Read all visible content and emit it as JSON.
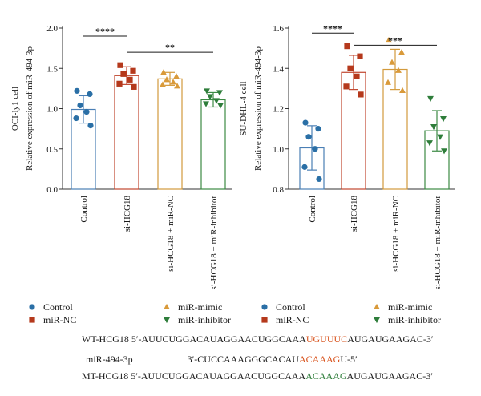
{
  "chart_data": [
    {
      "type": "bar",
      "ylabel_top": "OCI-ly1 cell",
      "ylabel_bottom": "Relative expression of miR-494-3p",
      "categories": [
        "Control",
        "si-HCG18",
        "si-HCG18 + miR-NC",
        "si-HCG18 + miR-inhibitor"
      ],
      "means": [
        0.99,
        1.41,
        1.37,
        1.11
      ],
      "sd": [
        0.17,
        0.11,
        0.08,
        0.09
      ],
      "points": [
        [
          1.22,
          1.18,
          1.04,
          0.96,
          0.88,
          0.79
        ],
        [
          1.54,
          1.47,
          1.43,
          1.36,
          1.31,
          1.27
        ],
        [
          1.45,
          1.4,
          1.36,
          1.33,
          1.3,
          1.28
        ],
        [
          1.22,
          1.2,
          1.15,
          1.1,
          1.06,
          1.04
        ]
      ],
      "ylim": [
        0.0,
        2.0
      ],
      "yticks": [
        0.0,
        0.5,
        1.0,
        1.5,
        2.0
      ],
      "tick_labels": [
        "0.0",
        "0.5",
        "1.0",
        "1.5",
        "2.0"
      ],
      "significance": [
        {
          "from": 0,
          "to": 1,
          "y": 1.9,
          "label": "****"
        },
        {
          "from": 1,
          "to": 3,
          "y": 1.7,
          "label": "**"
        }
      ]
    },
    {
      "type": "bar",
      "ylabel_top": "SU-DHL-4 cell",
      "ylabel_bottom": "Relative expression of miR-494-3p",
      "categories": [
        "Control",
        "si-HCG18",
        "si-HCG18 + miR-NC",
        "si-HCG18 + miR-inhibitor"
      ],
      "means": [
        1.005,
        1.38,
        1.395,
        1.09
      ],
      "sd": [
        0.11,
        0.085,
        0.1,
        0.1
      ],
      "points": [
        [
          1.13,
          1.1,
          1.06,
          1.0,
          0.91,
          0.85
        ],
        [
          1.51,
          1.46,
          1.4,
          1.36,
          1.31,
          1.27
        ],
        [
          1.54,
          1.48,
          1.43,
          1.39,
          1.33,
          1.29
        ],
        [
          1.25,
          1.15,
          1.11,
          1.06,
          1.03,
          0.99
        ]
      ],
      "ylim": [
        0.8,
        1.6
      ],
      "yticks": [
        0.8,
        1.0,
        1.2,
        1.4,
        1.6
      ],
      "tick_labels": [
        "0.8",
        "1.0",
        "1.2",
        "1.4",
        "1.6"
      ],
      "significance": [
        {
          "from": 0,
          "to": 1,
          "y": 1.575,
          "label": "****"
        },
        {
          "from": 1,
          "to": 3,
          "y": 1.515,
          "label": "***"
        }
      ]
    }
  ],
  "groups": [
    {
      "name": "Control",
      "color": "#2a6fa6",
      "marker": "circle"
    },
    {
      "name": "miR-NC",
      "color": "#b5391c",
      "marker": "square"
    },
    {
      "name": "miR-mimic",
      "color": "#d99a3a",
      "marker": "triangle-up"
    },
    {
      "name": "miR-inhibitor",
      "color": "#2e7d3a",
      "marker": "triangle-down"
    }
  ],
  "bar_edge_colors": [
    "#4a7fb5",
    "#c0462e",
    "#d39a3c",
    "#3c8a44"
  ],
  "sequences": [
    {
      "parts": [
        {
          "text": "WT-HCG18 5′-AUUCUGGACAUAGGAACUGGCAAA",
          "color": "#1a1a1a"
        },
        {
          "text": "UGUUUC",
          "color": "#d9541e"
        },
        {
          "text": "AUGAUGAAGAC-3′",
          "color": "#1a1a1a"
        }
      ]
    },
    {
      "parts": [
        {
          "text": "miR-494-3p",
          "color": "#1a1a1a"
        },
        {
          "text": "3′-CUCCAAAGGGCACAU",
          "color": "#1a1a1a"
        },
        {
          "text": "ACAAAG",
          "color": "#d9541e"
        },
        {
          "text": "U-5′",
          "color": "#1a1a1a"
        }
      ]
    },
    {
      "parts": [
        {
          "text": "MT-HCG18 5′-AUUCUGGACAUAGGAACUGGCAAA",
          "color": "#1a1a1a"
        },
        {
          "text": "ACAAAG",
          "color": "#2e7d3a"
        },
        {
          "text": "AUGAUGAAGAC-3′",
          "color": "#1a1a1a"
        }
      ]
    }
  ]
}
